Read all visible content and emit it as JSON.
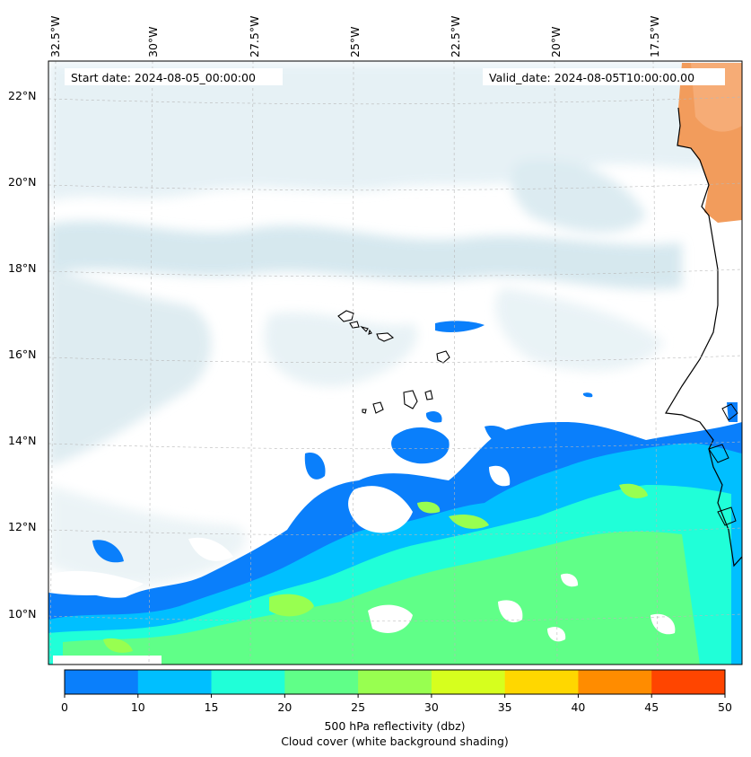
{
  "header": {
    "start_date": "Start date: 2024-08-05_00:00:00",
    "valid_date": "Valid_date: 2024-08-05T10:00:00.00"
  },
  "map": {
    "lon_labels": [
      "32.5°W",
      "30°W",
      "27.5°W",
      "25°W",
      "22.5°W",
      "20°W",
      "17.5°W"
    ],
    "lat_labels": [
      "22°N",
      "20°N",
      "18°N",
      "16°N",
      "14°N",
      "12°N",
      "10°N"
    ],
    "colors": {
      "land": "#f0a060",
      "land_light": "#f5b987",
      "cloud": "#d6e8ef",
      "cloud_light": "#e9f3f6",
      "coast": "#000000"
    }
  },
  "colorbar": {
    "ticks": [
      "0",
      "10",
      "15",
      "20",
      "25",
      "30",
      "35",
      "40",
      "45",
      "50"
    ],
    "colors": [
      "#0a7ffb",
      "#00bfff",
      "#20ffd8",
      "#60ff88",
      "#98ff50",
      "#d6ff1e",
      "#ffd700",
      "#ff8c00",
      "#ff4500"
    ],
    "label_line1": "500 hPa reflectivity (dbz)",
    "label_line2": "Cloud cover (white background shading)"
  }
}
